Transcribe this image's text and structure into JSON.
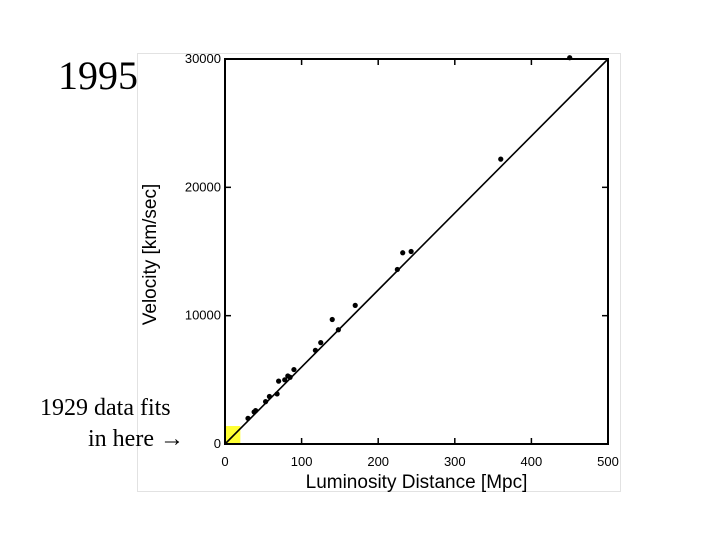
{
  "slide": {
    "year_label": "1995",
    "annotation_line1": "1929 data fits",
    "annotation_line2": "in here →"
  },
  "chart_data": {
    "type": "scatter",
    "xlabel": "Luminosity Distance [Mpc]",
    "ylabel": "Velocity [km/sec]",
    "xlim": [
      0,
      500
    ],
    "ylim": [
      0,
      30000
    ],
    "x_ticks": [
      0,
      100,
      200,
      300,
      400,
      500
    ],
    "y_ticks": [
      0,
      10000,
      20000,
      30000
    ],
    "x_tick_labels": [
      "0",
      "100",
      "200",
      "300",
      "400",
      "500"
    ],
    "y_tick_labels": [
      "0",
      "10000",
      "20000",
      "30000"
    ],
    "points": [
      {
        "x": 30,
        "y": 2000
      },
      {
        "x": 38,
        "y": 2500
      },
      {
        "x": 40,
        "y": 2600
      },
      {
        "x": 53,
        "y": 3300
      },
      {
        "x": 58,
        "y": 3700
      },
      {
        "x": 68,
        "y": 3900
      },
      {
        "x": 70,
        "y": 4900
      },
      {
        "x": 78,
        "y": 5000
      },
      {
        "x": 82,
        "y": 5300
      },
      {
        "x": 85,
        "y": 5200
      },
      {
        "x": 90,
        "y": 5800
      },
      {
        "x": 118,
        "y": 7300
      },
      {
        "x": 125,
        "y": 7900
      },
      {
        "x": 140,
        "y": 9700
      },
      {
        "x": 148,
        "y": 8900
      },
      {
        "x": 170,
        "y": 10800
      },
      {
        "x": 225,
        "y": 13600
      },
      {
        "x": 232,
        "y": 14900
      },
      {
        "x": 243,
        "y": 15000
      },
      {
        "x": 360,
        "y": 22200
      },
      {
        "x": 450,
        "y": 30100
      }
    ],
    "fit_line": {
      "x": [
        0,
        500
      ],
      "y": [
        0,
        31500
      ]
    },
    "highlight_region": {
      "x": [
        0,
        20
      ],
      "y": [
        0,
        1400
      ],
      "color": "#ffff33"
    },
    "marker_color": "#000000",
    "line_color": "#000000",
    "grid": false
  }
}
